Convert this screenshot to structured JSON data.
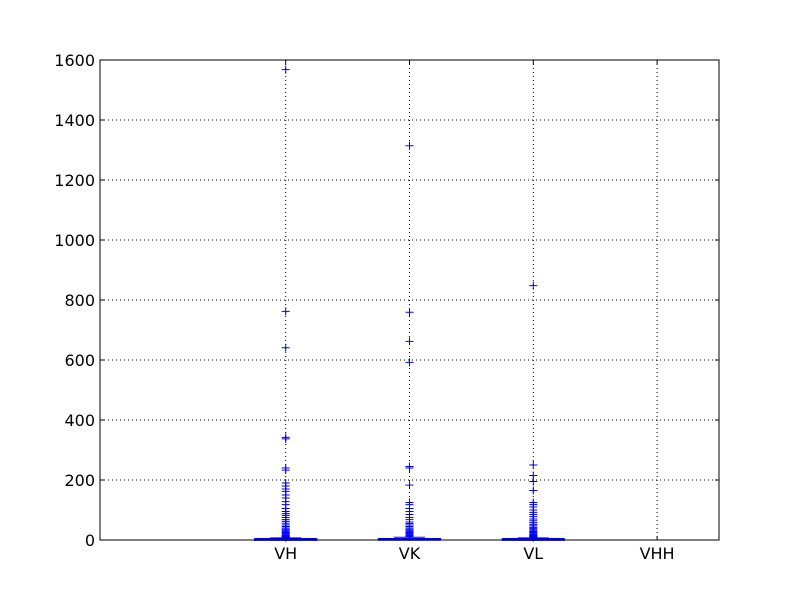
{
  "chart_data": {
    "type": "box",
    "title": "",
    "xlabel": "",
    "ylabel": "",
    "categories": [
      "VH",
      "VK",
      "VL",
      "VHH"
    ],
    "ylim": [
      0,
      1600
    ],
    "yticks": [
      0,
      200,
      400,
      600,
      800,
      1000,
      1200,
      1400,
      1600
    ],
    "ytick_labels": [
      "0",
      "200",
      "400",
      "600",
      "800",
      "1000",
      "1200",
      "1400",
      "1600"
    ],
    "grid": true,
    "legend": "none",
    "colors": {
      "box": "#0000ff",
      "flier": "#0000ff",
      "grid": "#000000",
      "axes": "#000000"
    },
    "series": [
      {
        "category": "VH",
        "box": {
          "whisker_low": 0,
          "q1": 0,
          "median": 1,
          "q3": 3,
          "whisker_high": 7
        },
        "outliers": [
          1568,
          762,
          641,
          342,
          337,
          240,
          233,
          190,
          180,
          170,
          162,
          150,
          140,
          128,
          118,
          105,
          95,
          88,
          82,
          75,
          68,
          62,
          56,
          50,
          45,
          40,
          36,
          32,
          28,
          25,
          22,
          19,
          16,
          14,
          12,
          10,
          9,
          8
        ]
      },
      {
        "category": "VK",
        "box": {
          "whisker_low": 0,
          "q1": 0,
          "median": 2,
          "q3": 4,
          "whisker_high": 9
        },
        "outliers": [
          1314,
          759,
          662,
          592,
          245,
          240,
          183,
          125,
          118,
          105,
          95,
          85,
          75,
          68,
          60,
          55,
          50,
          45,
          40,
          36,
          32,
          28,
          25,
          22,
          19,
          16,
          14,
          12,
          10
        ]
      },
      {
        "category": "VL",
        "box": {
          "whisker_low": 0,
          "q1": 0,
          "median": 1,
          "q3": 3,
          "whisker_high": 7
        },
        "outliers": [
          848,
          250,
          215,
          195,
          165,
          125,
          118,
          110,
          100,
          92,
          85,
          78,
          70,
          64,
          58,
          52,
          47,
          42,
          38,
          34,
          30,
          27,
          24,
          21,
          18,
          15,
          13,
          11,
          9,
          8
        ]
      },
      {
        "category": "VHH",
        "box": null,
        "outliers": []
      }
    ]
  }
}
